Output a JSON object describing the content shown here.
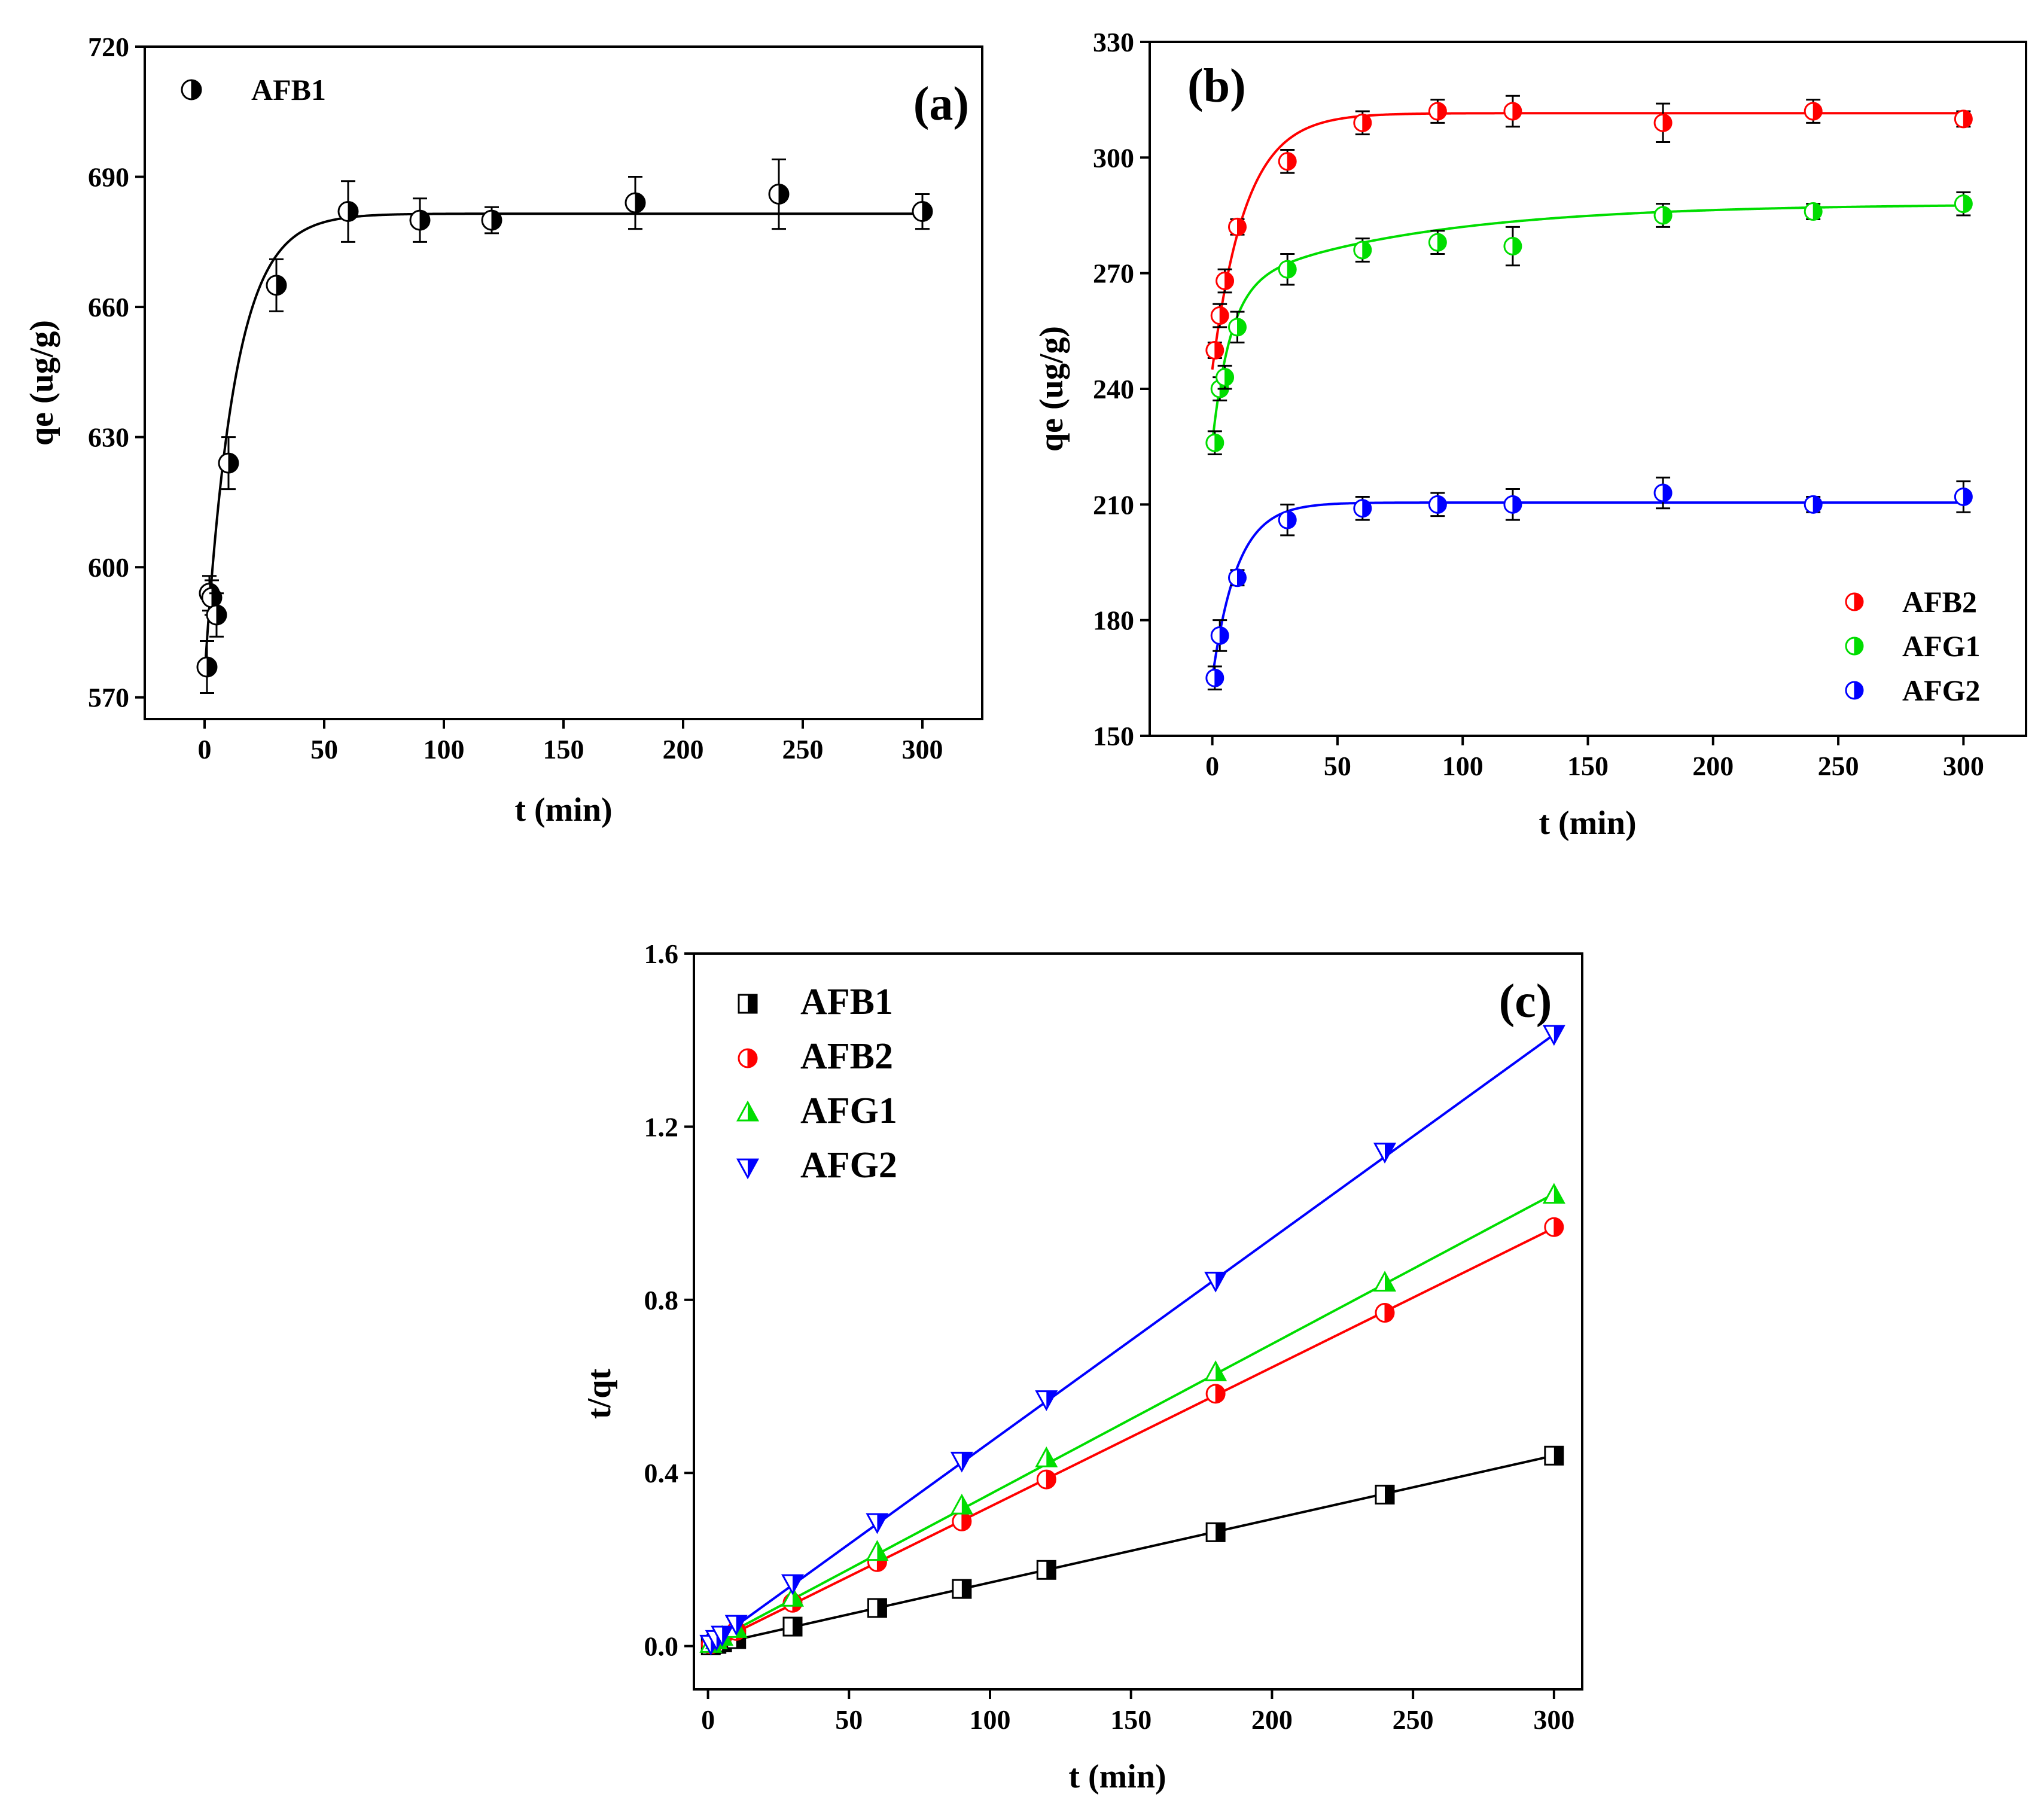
{
  "figure": {
    "panels": [
      "a",
      "b",
      "c"
    ]
  },
  "chart_data": [
    {
      "id": "a",
      "type": "scatter",
      "panel_label": "(a)",
      "xlabel": "t (min)",
      "ylabel": "qe (ug/g)",
      "xlim": [
        -25,
        325
      ],
      "ylim": [
        565,
        720
      ],
      "xticks": [
        0,
        50,
        100,
        150,
        200,
        250,
        300
      ],
      "yticks": [
        570,
        600,
        630,
        660,
        690,
        720
      ],
      "xtick_labels": [
        "0",
        "50",
        "100",
        "150",
        "200",
        "250",
        "300"
      ],
      "ytick_labels": [
        "570",
        "600",
        "630",
        "660",
        "690",
        "720"
      ],
      "legend_position": "top-left",
      "series": [
        {
          "name": "AFB1",
          "color": "#000000",
          "marker": "half-circle",
          "x": [
            1,
            2,
            3,
            5,
            10,
            30,
            60,
            90,
            120,
            180,
            240,
            300
          ],
          "y": [
            577,
            594,
            593,
            589,
            624,
            665,
            682,
            680,
            680,
            684,
            686,
            682
          ],
          "err": [
            6,
            4,
            4,
            5,
            6,
            6,
            7,
            5,
            3,
            6,
            8,
            4
          ],
          "fit": {
            "model": "pfo",
            "qe": 681.5,
            "q0": 575,
            "k": 0.08
          }
        }
      ]
    },
    {
      "id": "b",
      "type": "scatter",
      "panel_label": "(b)",
      "xlabel": "t (min)",
      "ylabel": "qe (ug/g)",
      "xlim": [
        -25,
        325
      ],
      "ylim": [
        150,
        330
      ],
      "xticks": [
        0,
        50,
        100,
        150,
        200,
        250,
        300
      ],
      "yticks": [
        150,
        180,
        210,
        240,
        270,
        300,
        330
      ],
      "xtick_labels": [
        "0",
        "50",
        "100",
        "150",
        "200",
        "250",
        "300"
      ],
      "ytick_labels": [
        "150",
        "180",
        "210",
        "240",
        "270",
        "300",
        "330"
      ],
      "legend_position": "bottom-right",
      "series": [
        {
          "name": "AFB2",
          "color": "#ff0000",
          "marker": "half-circle",
          "x": [
            1,
            3,
            5,
            10,
            30,
            60,
            90,
            120,
            180,
            240,
            300
          ],
          "y": [
            250,
            259,
            268,
            282,
            299,
            309,
            312,
            312,
            309,
            312,
            310
          ],
          "err": [
            2,
            3,
            3,
            2,
            3,
            3,
            3,
            4,
            5,
            3,
            2
          ],
          "fit": {
            "model": "pfo",
            "qe": 311.5,
            "q0": 245,
            "k": 0.075
          }
        },
        {
          "name": "AFG1",
          "color": "#00dd00",
          "marker": "half-circle",
          "x": [
            1,
            3,
            5,
            10,
            30,
            60,
            90,
            120,
            180,
            240,
            300
          ],
          "y": [
            226,
            240,
            243,
            256,
            271,
            276,
            278,
            277,
            285,
            286,
            288
          ],
          "err": [
            3,
            3,
            3,
            4,
            4,
            3,
            3,
            5,
            3,
            2,
            3
          ],
          "fit": {
            "model": "pfo2",
            "q0": 226,
            "a": 40,
            "k1": 0.14,
            "b": 22,
            "k2": 0.013
          }
        },
        {
          "name": "AFG2",
          "color": "#0000ff",
          "marker": "half-circle",
          "x": [
            1,
            3,
            10,
            30,
            60,
            90,
            120,
            180,
            240,
            300
          ],
          "y": [
            165,
            176,
            191,
            206,
            209,
            210,
            210,
            213,
            210,
            212
          ],
          "err": [
            3,
            4,
            2,
            4,
            3,
            3,
            4,
            4,
            2,
            4
          ],
          "fit": {
            "model": "pfo",
            "qe": 210.5,
            "q0": 165,
            "k": 0.1
          }
        }
      ]
    },
    {
      "id": "c",
      "type": "scatter",
      "panel_label": "(c)",
      "xlabel": "t (min)",
      "ylabel": "t/qt",
      "xlim": [
        -5,
        310
      ],
      "ylim": [
        -0.1,
        1.6
      ],
      "xticks": [
        0,
        50,
        100,
        150,
        200,
        250,
        300
      ],
      "yticks": [
        0.0,
        0.4,
        0.8,
        1.2,
        1.6
      ],
      "xtick_labels": [
        "0",
        "50",
        "100",
        "150",
        "200",
        "250",
        "300"
      ],
      "ytick_labels": [
        "0.0",
        "0.4",
        "0.8",
        "1.2",
        "1.6"
      ],
      "legend_position": "top-left",
      "series": [
        {
          "name": "AFB1",
          "color": "#000000",
          "marker": "half-square",
          "x": [
            1,
            3,
            5,
            10,
            30,
            60,
            90,
            120,
            180,
            240,
            300
          ],
          "y": [
            0.0017,
            0.005,
            0.0085,
            0.016,
            0.045,
            0.088,
            0.132,
            0.176,
            0.263,
            0.35,
            0.44
          ],
          "fit": {
            "model": "linear",
            "slope": 0.001467,
            "intercept": 0.0
          }
        },
        {
          "name": "AFB2",
          "color": "#ff0000",
          "marker": "half-circle",
          "x": [
            1,
            3,
            5,
            10,
            30,
            60,
            90,
            120,
            180,
            240,
            300
          ],
          "y": [
            0.004,
            0.012,
            0.019,
            0.035,
            0.1,
            0.194,
            0.288,
            0.385,
            0.583,
            0.77,
            0.968
          ],
          "fit": {
            "model": "linear",
            "slope": 0.00322,
            "intercept": 0.0
          }
        },
        {
          "name": "AFG1",
          "color": "#00dd00",
          "marker": "triangle-up",
          "x": [
            1,
            3,
            5,
            10,
            30,
            60,
            90,
            120,
            180,
            240,
            300
          ],
          "y": [
            0.0044,
            0.0125,
            0.0206,
            0.039,
            0.111,
            0.217,
            0.324,
            0.433,
            0.632,
            0.839,
            1.042
          ],
          "fit": {
            "model": "linear",
            "slope": 0.00347,
            "intercept": 0.004
          }
        },
        {
          "name": "AFG2",
          "color": "#0000ff",
          "marker": "triangle-down",
          "x": [
            1,
            3,
            5,
            10,
            30,
            60,
            90,
            120,
            180,
            240,
            300
          ],
          "y": [
            0.006,
            0.017,
            0.027,
            0.052,
            0.146,
            0.287,
            0.429,
            0.571,
            0.845,
            1.143,
            1.415
          ],
          "fit": {
            "model": "linear",
            "slope": 0.00471,
            "intercept": 0.0
          }
        }
      ]
    }
  ]
}
